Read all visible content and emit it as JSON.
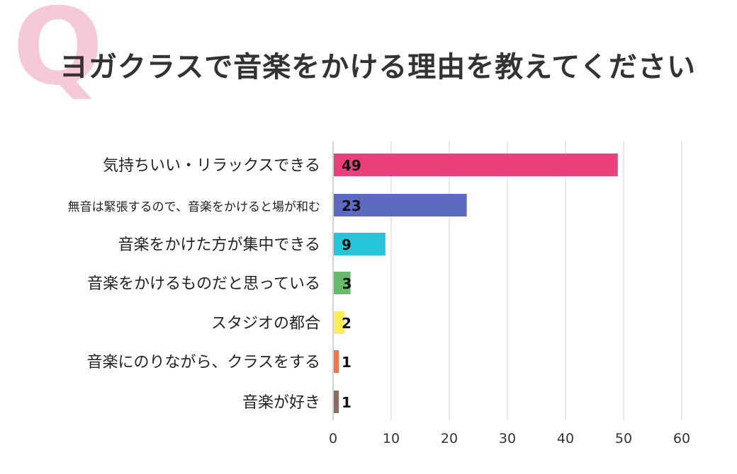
{
  "header": {
    "q_mark": "Q",
    "title": "ヨガクラスで音楽をかける理由を教えてください"
  },
  "chart_data": {
    "type": "bar",
    "orientation": "horizontal",
    "title": "ヨガクラスで音楽をかける理由を教えてください",
    "categories": [
      "気持ちいい・リラックスできる",
      "無音は緊張するので、音楽をかけると場が和む",
      "音楽をかけた方が集中できる",
      "音楽をかけるものだと思っている",
      "スタジオの都合",
      "音楽にのりながら、クラスをする",
      "音楽が好き"
    ],
    "values": [
      49,
      23,
      9,
      3,
      2,
      1,
      1
    ],
    "colors": [
      "#ea3f7b",
      "#5c6bc0",
      "#26c6da",
      "#66bb6a",
      "#ffee58",
      "#ff7043",
      "#8d6e63"
    ],
    "xlim": [
      0,
      60
    ],
    "xticks": [
      0,
      10,
      20,
      30,
      40,
      50,
      60
    ],
    "grid": true,
    "data_labels": true
  }
}
